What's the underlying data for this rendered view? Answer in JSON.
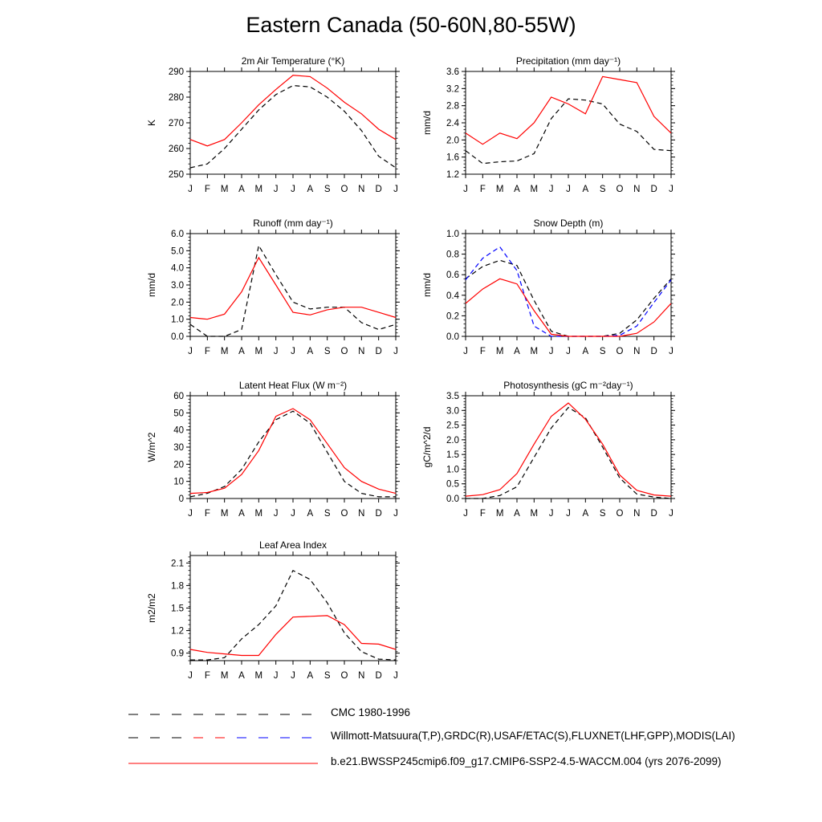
{
  "page": {
    "title": "Eastern Canada (50-60N,80-55W)"
  },
  "months": [
    "J",
    "F",
    "M",
    "A",
    "M",
    "J",
    "J",
    "A",
    "S",
    "O",
    "N",
    "D",
    "J"
  ],
  "series_styles": {
    "obs": {
      "color": "#000000",
      "dash": true
    },
    "obs_alt": {
      "color": "#0000ff",
      "dash": true
    },
    "model": {
      "color": "#ff0000",
      "dash": false
    }
  },
  "chart_data": [
    {
      "id": "temp",
      "type": "line",
      "title": "2m Air Temperature (°K)",
      "ylabel": "K",
      "ylim": [
        250,
        290
      ],
      "yticks": [
        250,
        260,
        270,
        280,
        290
      ],
      "ytick_labels": [
        "250",
        "260",
        "270",
        "280",
        "290"
      ],
      "x": [
        "J",
        "F",
        "M",
        "A",
        "M",
        "J",
        "J",
        "A",
        "S",
        "O",
        "N",
        "D",
        "J"
      ],
      "series": [
        {
          "style": "obs",
          "values": [
            252.5,
            254,
            260,
            267.5,
            275,
            281,
            284.5,
            284,
            280,
            274.5,
            267,
            257,
            252.5
          ]
        },
        {
          "style": "model",
          "values": [
            263.5,
            261,
            263.5,
            270,
            277,
            283,
            288.5,
            288,
            283.5,
            278,
            273.5,
            267.5,
            263.5
          ]
        }
      ]
    },
    {
      "id": "precip",
      "type": "line",
      "title": "Precipitation (mm day⁻¹)",
      "ylabel": "mm/d",
      "ylim": [
        1.2,
        3.6
      ],
      "yticks": [
        1.2,
        1.6,
        2.0,
        2.4,
        2.8,
        3.2,
        3.6
      ],
      "ytick_labels": [
        "1.2",
        "1.6",
        "2.0",
        "2.4",
        "2.8",
        "3.2",
        "3.6"
      ],
      "x": [
        "J",
        "F",
        "M",
        "A",
        "M",
        "J",
        "J",
        "A",
        "S",
        "O",
        "N",
        "D",
        "J"
      ],
      "series": [
        {
          "style": "obs",
          "values": [
            1.75,
            1.45,
            1.49,
            1.51,
            1.68,
            2.5,
            2.96,
            2.93,
            2.84,
            2.37,
            2.2,
            1.78,
            1.75
          ]
        },
        {
          "style": "model",
          "values": [
            2.16,
            1.9,
            2.16,
            2.03,
            2.4,
            3.0,
            2.84,
            2.61,
            3.48,
            3.41,
            3.34,
            2.55,
            2.16
          ]
        }
      ]
    },
    {
      "id": "runoff",
      "type": "line",
      "title": "Runoff (mm day⁻¹)",
      "ylabel": "mm/d",
      "ylim": [
        0,
        6
      ],
      "yticks": [
        0,
        1,
        2,
        3,
        4,
        5,
        6
      ],
      "ytick_labels": [
        "0.0",
        "1.0",
        "2.0",
        "3.0",
        "4.0",
        "5.0",
        "6.0"
      ],
      "x": [
        "J",
        "F",
        "M",
        "A",
        "M",
        "J",
        "J",
        "A",
        "S",
        "O",
        "N",
        "D",
        "J"
      ],
      "series": [
        {
          "style": "obs",
          "values": [
            0.7,
            0.0,
            0.0,
            0.4,
            5.3,
            3.6,
            2.0,
            1.6,
            1.7,
            1.7,
            0.8,
            0.4,
            0.7
          ]
        },
        {
          "style": "model",
          "values": [
            1.1,
            1.0,
            1.3,
            2.6,
            4.6,
            3.0,
            1.4,
            1.25,
            1.55,
            1.7,
            1.7,
            1.4,
            1.1
          ]
        }
      ]
    },
    {
      "id": "snow",
      "type": "line",
      "title": "Snow Depth (m)",
      "ylabel": "mm/d",
      "ylim": [
        0,
        1
      ],
      "yticks": [
        0,
        0.2,
        0.4,
        0.6,
        0.8,
        1.0
      ],
      "ytick_labels": [
        "0.0",
        "0.2",
        "0.4",
        "0.6",
        "0.8",
        "1.0"
      ],
      "x": [
        "J",
        "F",
        "M",
        "A",
        "M",
        "J",
        "J",
        "A",
        "S",
        "O",
        "N",
        "D",
        "J"
      ],
      "series": [
        {
          "style": "obs",
          "values": [
            0.56,
            0.68,
            0.74,
            0.69,
            0.35,
            0.05,
            0.0,
            0.0,
            0.0,
            0.03,
            0.16,
            0.37,
            0.56
          ]
        },
        {
          "style": "obs_alt",
          "values": [
            0.55,
            0.76,
            0.87,
            0.64,
            0.1,
            0.0,
            0.0,
            0.0,
            0.0,
            0.01,
            0.1,
            0.33,
            0.55
          ]
        },
        {
          "style": "model",
          "values": [
            0.32,
            0.46,
            0.56,
            0.51,
            0.25,
            0.02,
            0.0,
            0.0,
            0.0,
            0.0,
            0.03,
            0.14,
            0.32
          ]
        }
      ]
    },
    {
      "id": "lhf",
      "type": "line",
      "title": "Latent Heat Flux (W m⁻²)",
      "ylabel": "W/m^2",
      "ylim": [
        0,
        60
      ],
      "yticks": [
        0,
        10,
        20,
        30,
        40,
        50,
        60
      ],
      "ytick_labels": [
        "0",
        "10",
        "20",
        "30",
        "40",
        "50",
        "60"
      ],
      "x": [
        "J",
        "F",
        "M",
        "A",
        "M",
        "J",
        "J",
        "A",
        "S",
        "O",
        "N",
        "D",
        "J"
      ],
      "series": [
        {
          "style": "obs",
          "values": [
            1,
            3,
            7,
            17,
            33,
            46,
            51,
            44,
            27,
            10,
            3,
            1,
            1
          ]
        },
        {
          "style": "model",
          "values": [
            3,
            3.5,
            6,
            14,
            28,
            48,
            52.5,
            46,
            32,
            18,
            10,
            5.5,
            3
          ]
        }
      ]
    },
    {
      "id": "gpp",
      "type": "line",
      "title": "Photosynthesis (gC m⁻²day⁻¹)",
      "ylabel": "gC/m^2/d",
      "ylim": [
        0,
        3.5
      ],
      "yticks": [
        0,
        0.5,
        1.0,
        1.5,
        2.0,
        2.5,
        3.0,
        3.5
      ],
      "ytick_labels": [
        "0.0",
        "0.5",
        "1.0",
        "1.5",
        "2.0",
        "2.5",
        "3.0",
        "3.5"
      ],
      "x": [
        "J",
        "F",
        "M",
        "A",
        "M",
        "J",
        "J",
        "A",
        "S",
        "O",
        "N",
        "D",
        "J"
      ],
      "series": [
        {
          "style": "obs",
          "values": [
            0.0,
            0.0,
            0.1,
            0.4,
            1.4,
            2.4,
            3.1,
            2.75,
            1.75,
            0.7,
            0.15,
            0.05,
            0.0
          ]
        },
        {
          "style": "model",
          "values": [
            0.08,
            0.13,
            0.3,
            0.85,
            1.85,
            2.8,
            3.25,
            2.7,
            1.85,
            0.8,
            0.28,
            0.12,
            0.08
          ]
        }
      ]
    },
    {
      "id": "lai",
      "type": "line",
      "title": "Leaf Area Index",
      "ylabel": "m2/m2",
      "ylim": [
        0.8,
        2.2
      ],
      "yticks": [
        0.9,
        1.2,
        1.5,
        1.8,
        2.1
      ],
      "ytick_labels": [
        "0.9",
        "1.2",
        "1.5",
        "1.8",
        "2.1"
      ],
      "x": [
        "J",
        "F",
        "M",
        "A",
        "M",
        "J",
        "J",
        "A",
        "S",
        "O",
        "N",
        "D",
        "J"
      ],
      "series": [
        {
          "style": "obs",
          "values": [
            0.81,
            0.81,
            0.84,
            1.09,
            1.28,
            1.53,
            2.0,
            1.88,
            1.57,
            1.17,
            0.92,
            0.82,
            0.81
          ]
        },
        {
          "style": "model",
          "values": [
            0.95,
            0.91,
            0.89,
            0.87,
            0.87,
            1.15,
            1.38,
            1.39,
            1.4,
            1.28,
            1.03,
            1.02,
            0.95
          ]
        }
      ]
    }
  ],
  "legend": [
    {
      "name": "legend-cmc",
      "label": "CMC 1980-1996",
      "colors": [
        "#000000"
      ],
      "dash": true
    },
    {
      "name": "legend-obs",
      "label": "Willmott-Matsuura(T,P),GRDC(R),USAF/ETAC(S),FLUXNET(LHF,GPP),MODIS(LAI)",
      "colors": [
        "#000000",
        "#ff0000",
        "#0000ff"
      ],
      "dash": true
    },
    {
      "name": "legend-model",
      "label": "b.e21.BWSSP245cmip6.f09_g17.CMIP6-SSP2-4.5-WACCM.004 (yrs 2076-2099)",
      "colors": [
        "#ff0000"
      ],
      "dash": false
    }
  ]
}
